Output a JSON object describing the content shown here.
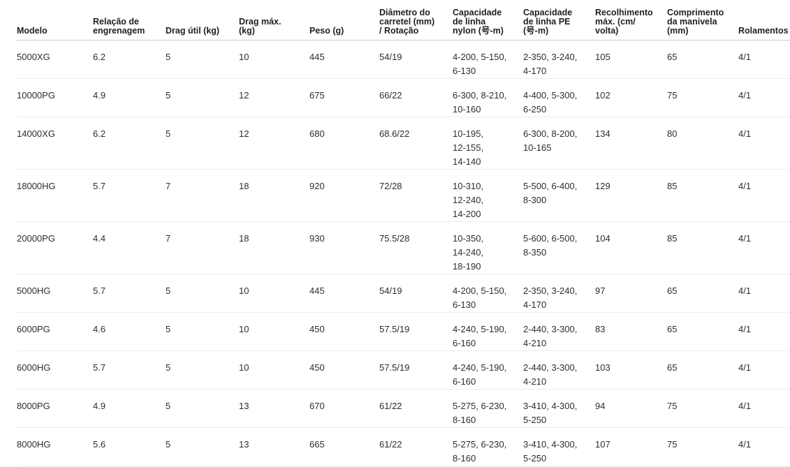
{
  "table": {
    "columns": [
      {
        "key": "modelo",
        "label": "Modelo"
      },
      {
        "key": "relacao",
        "label": "Relação de\nengrenagem"
      },
      {
        "key": "drag_util",
        "label": "Drag útil (kg)"
      },
      {
        "key": "drag_max",
        "label": "Drag máx.\n(kg)"
      },
      {
        "key": "peso",
        "label": "Peso (g)"
      },
      {
        "key": "diametro",
        "label": "Diâmetro do\ncarretel (mm)\n/ Rotação"
      },
      {
        "key": "nylon",
        "label": "Capacidade\nde linha\nnylon (号-m)"
      },
      {
        "key": "pe",
        "label": "Capacidade\nde linha PE\n(号-m)"
      },
      {
        "key": "recolhimento",
        "label": "Recolhimento\nmáx. (cm/\nvolta)"
      },
      {
        "key": "comprimento",
        "label": "Comprimento\nda manivela\n(mm)"
      },
      {
        "key": "rolamentos",
        "label": "Rolamentos"
      }
    ],
    "rows": [
      {
        "modelo": "5000XG",
        "relacao": "6.2",
        "drag_util": "5",
        "drag_max": "10",
        "peso": "445",
        "diametro": "54/19",
        "nylon": "4-200, 5-150,\n6-130",
        "pe": "2-350, 3-240,\n4-170",
        "recolhimento": "105",
        "comprimento": "65",
        "rolamentos": "4/1"
      },
      {
        "modelo": "10000PG",
        "relacao": "4.9",
        "drag_util": "5",
        "drag_max": "12",
        "peso": "675",
        "diametro": "66/22",
        "nylon": "6-300, 8-210,\n10-160",
        "pe": "4-400, 5-300,\n6-250",
        "recolhimento": "102",
        "comprimento": "75",
        "rolamentos": "4/1"
      },
      {
        "modelo": "14000XG",
        "relacao": "6.2",
        "drag_util": "5",
        "drag_max": "12",
        "peso": "680",
        "diametro": "68.6/22",
        "nylon": "10-195,\n12-155,\n14-140",
        "pe": "6-300, 8-200,\n10-165",
        "recolhimento": "134",
        "comprimento": "80",
        "rolamentos": "4/1"
      },
      {
        "modelo": "18000HG",
        "relacao": "5.7",
        "drag_util": "7",
        "drag_max": "18",
        "peso": "920",
        "diametro": "72/28",
        "nylon": "10-310,\n12-240,\n14-200",
        "pe": "5-500, 6-400,\n8-300",
        "recolhimento": "129",
        "comprimento": "85",
        "rolamentos": "4/1"
      },
      {
        "modelo": "20000PG",
        "relacao": "4.4",
        "drag_util": "7",
        "drag_max": "18",
        "peso": "930",
        "diametro": "75.5/28",
        "nylon": "10-350,\n14-240,\n18-190",
        "pe": "5-600, 6-500,\n8-350",
        "recolhimento": "104",
        "comprimento": "85",
        "rolamentos": "4/1"
      },
      {
        "modelo": "5000HG",
        "relacao": "5.7",
        "drag_util": "5",
        "drag_max": "10",
        "peso": "445",
        "diametro": "54/19",
        "nylon": "4-200, 5-150,\n6-130",
        "pe": "2-350, 3-240,\n4-170",
        "recolhimento": "97",
        "comprimento": "65",
        "rolamentos": "4/1"
      },
      {
        "modelo": "6000PG",
        "relacao": "4.6",
        "drag_util": "5",
        "drag_max": "10",
        "peso": "450",
        "diametro": "57.5/19",
        "nylon": "4-240, 5-190,\n6-160",
        "pe": "2-440, 3-300,\n4-210",
        "recolhimento": "83",
        "comprimento": "65",
        "rolamentos": "4/1"
      },
      {
        "modelo": "6000HG",
        "relacao": "5.7",
        "drag_util": "5",
        "drag_max": "10",
        "peso": "450",
        "diametro": "57.5/19",
        "nylon": "4-240, 5-190,\n6-160",
        "pe": "2-440, 3-300,\n4-210",
        "recolhimento": "103",
        "comprimento": "65",
        "rolamentos": "4/1"
      },
      {
        "modelo": "8000PG",
        "relacao": "4.9",
        "drag_util": "5",
        "drag_max": "13",
        "peso": "670",
        "diametro": "61/22",
        "nylon": "5-275, 6-230,\n8-160",
        "pe": "3-410, 4-300,\n5-250",
        "recolhimento": "94",
        "comprimento": "75",
        "rolamentos": "4/1"
      },
      {
        "modelo": "8000HG",
        "relacao": "5.6",
        "drag_util": "5",
        "drag_max": "13",
        "peso": "665",
        "diametro": "61/22",
        "nylon": "5-275, 6-230,\n8-160",
        "pe": "3-410, 4-300,\n5-250",
        "recolhimento": "107",
        "comprimento": "75",
        "rolamentos": "4/1"
      }
    ]
  }
}
